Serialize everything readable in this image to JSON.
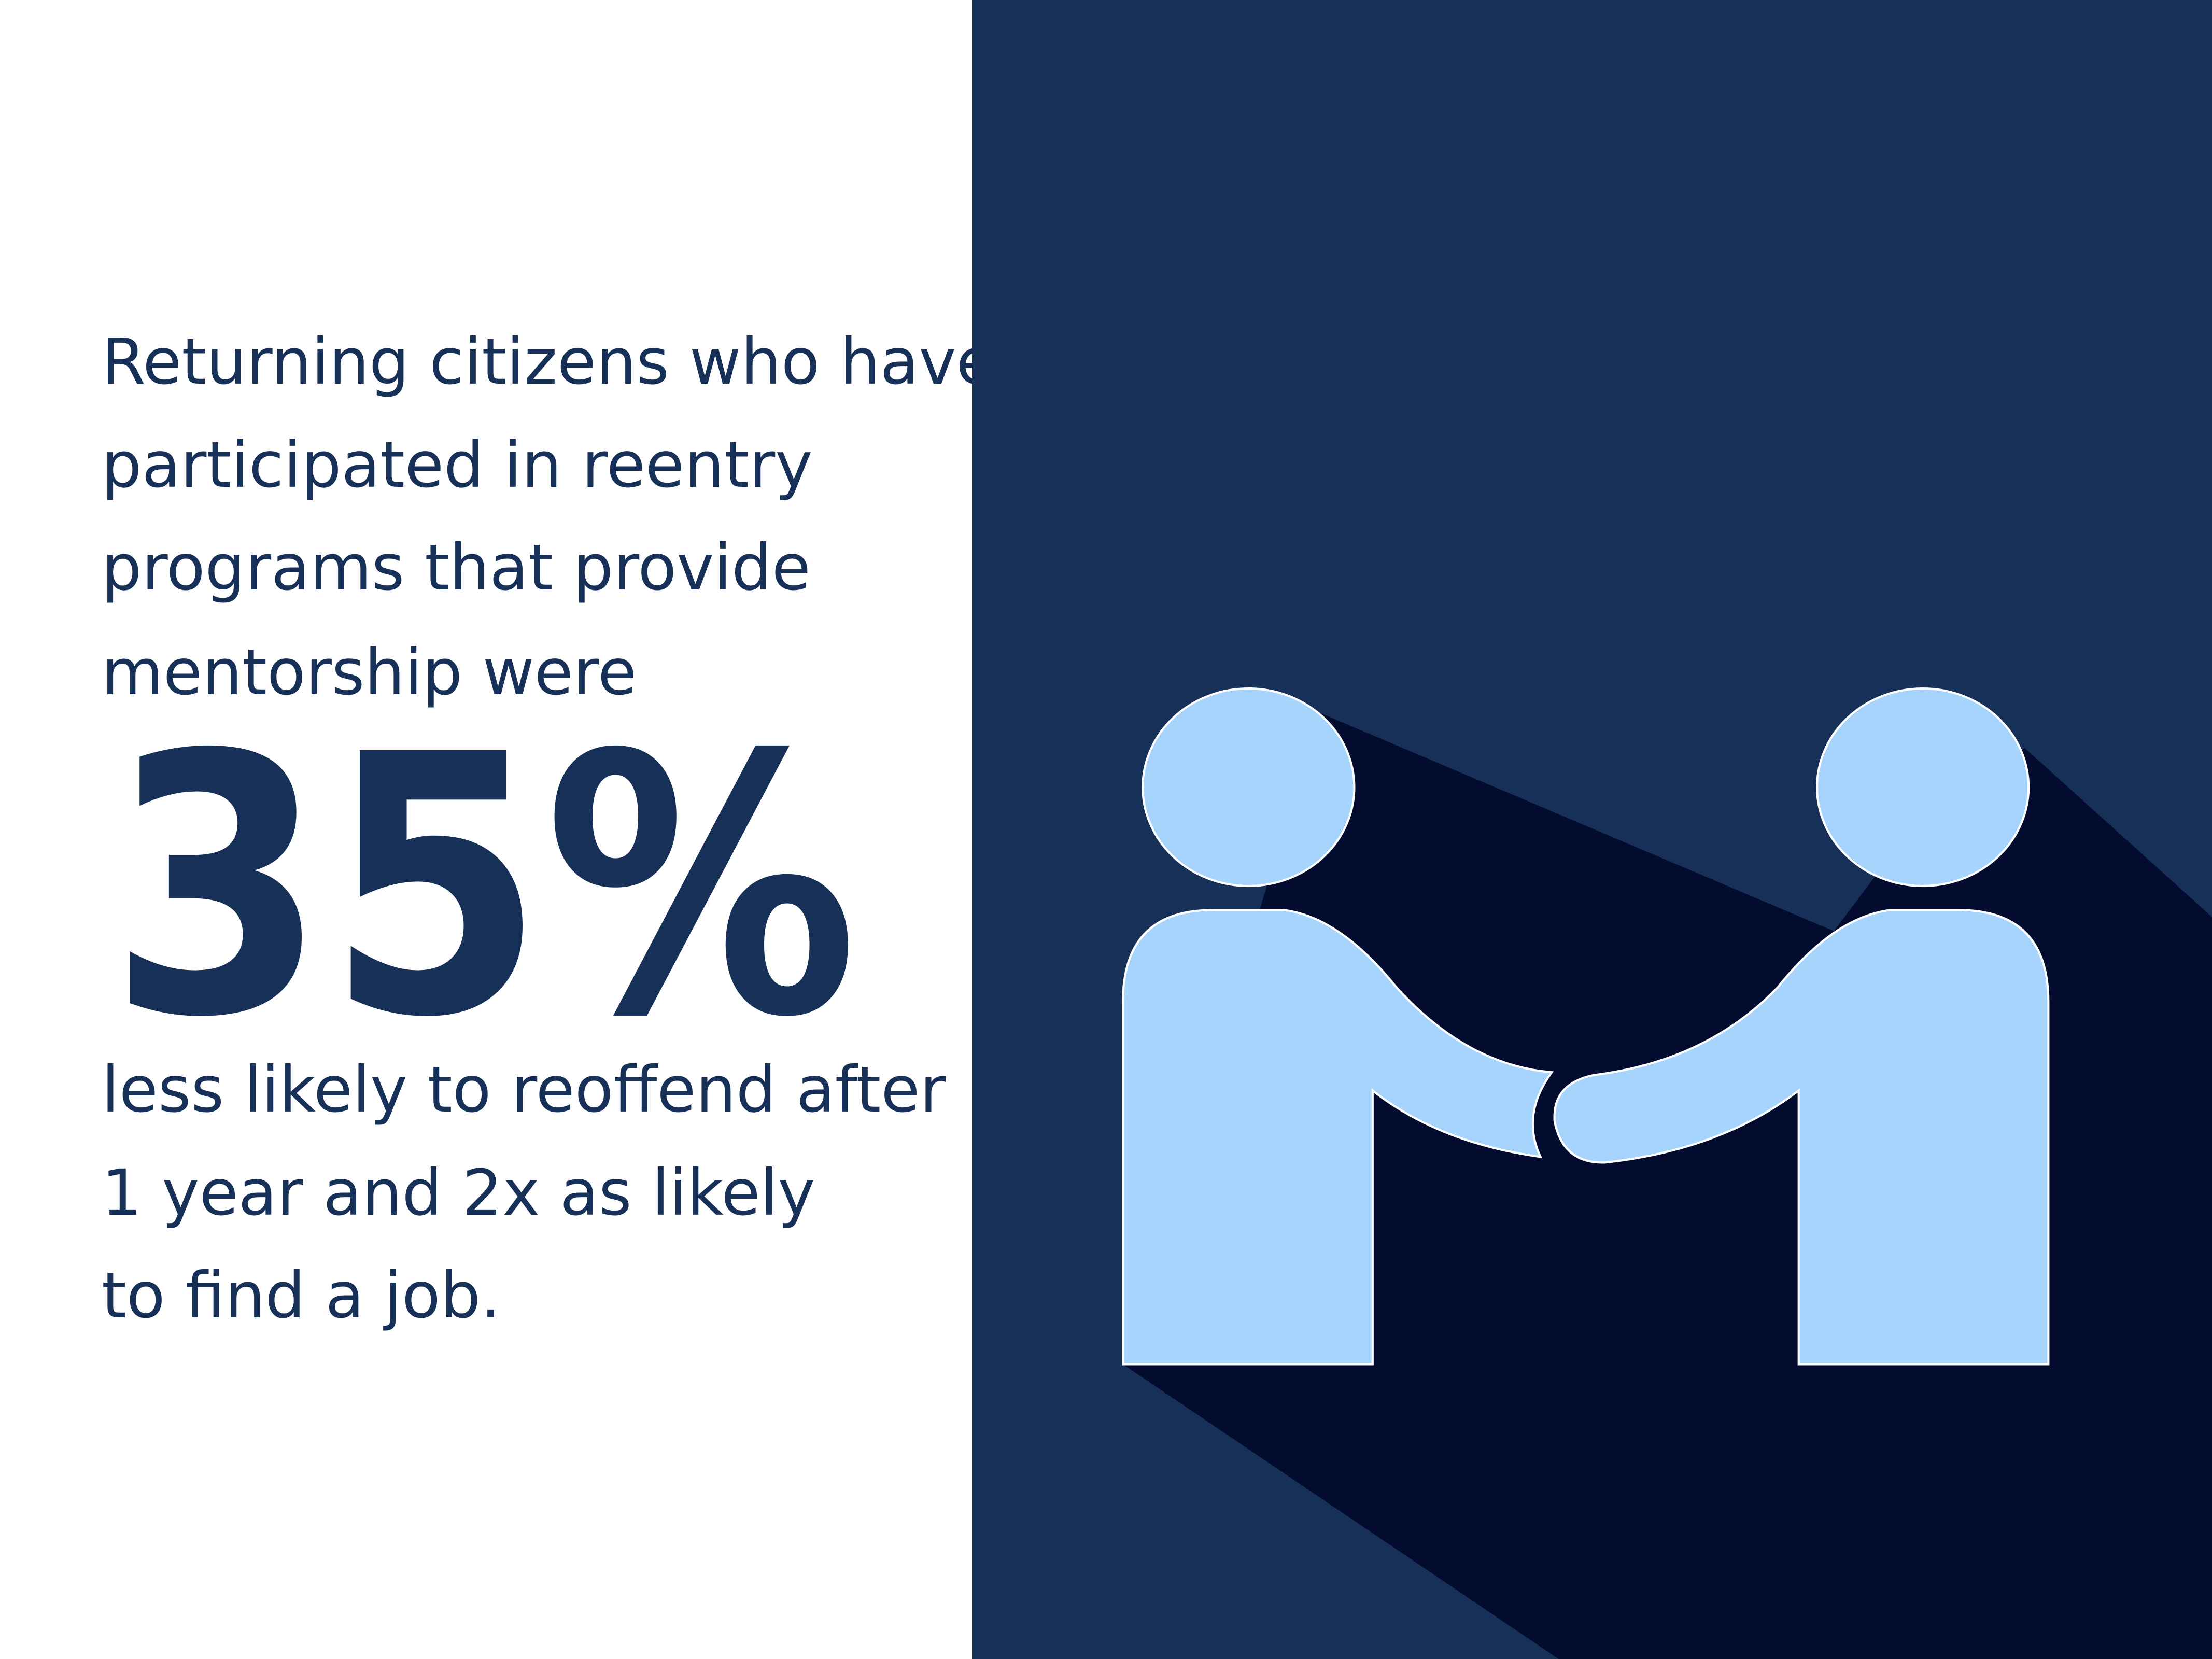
{
  "intro": [
    "Returning citizens who have",
    "participated in reentry",
    "programs that provide",
    "mentorship were"
  ],
  "stat": "35%",
  "outro": [
    "less likely to reoffend after",
    "1 year and 2x as likely",
    "to find a job."
  ]
}
